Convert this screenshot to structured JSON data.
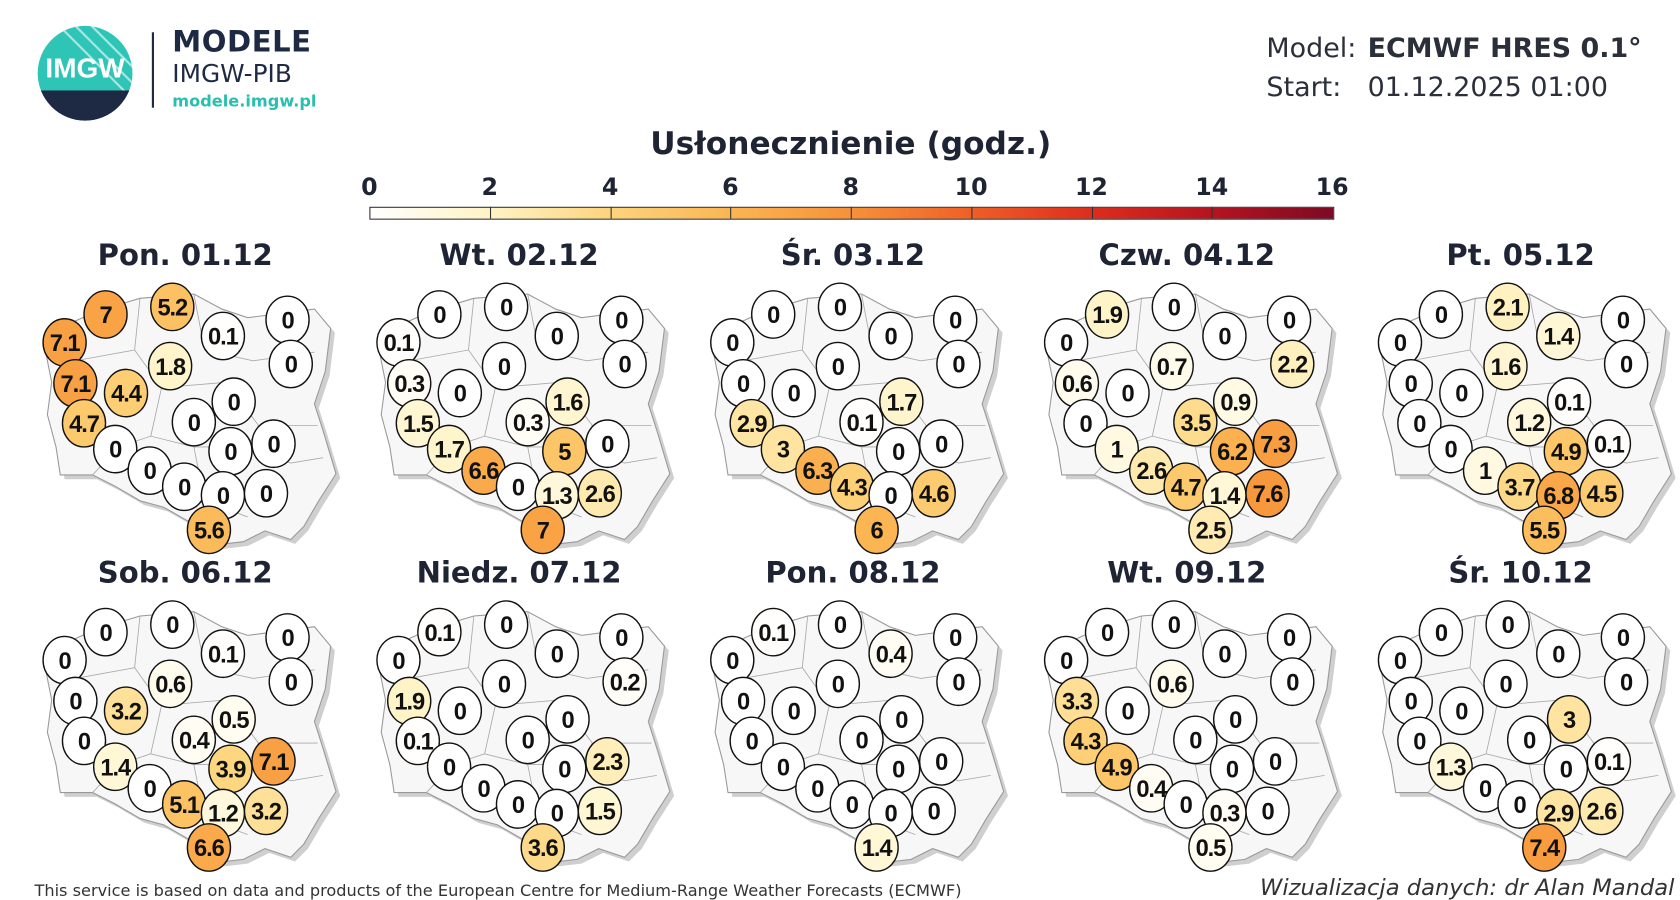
{
  "header": {
    "logo_text": "IMGW",
    "brand_title": "MODELE",
    "brand_subtitle": "IMGW-PIB",
    "brand_url": "modele.imgw.pl",
    "model_label": "Model:",
    "model_value": "ECMWF HRES 0.1°",
    "start_label": "Start:",
    "start_value": "01.12.2025 01:00"
  },
  "legend": {
    "title": "Usłonecznienie (godz.)",
    "ticks": [
      "0",
      "2",
      "4",
      "6",
      "8",
      "10",
      "12",
      "14",
      "16"
    ],
    "range": [
      0,
      16
    ],
    "colors": [
      "#ffffff",
      "#fff3c4",
      "#fdd47c",
      "#fbb552",
      "#f69138",
      "#ef5f26",
      "#dd2c1e",
      "#b41420",
      "#7d0a25"
    ]
  },
  "maps": [
    {
      "title": "Pon. 01.12",
      "values": [
        7.1,
        7,
        5.2,
        0.1,
        0,
        1.8,
        0,
        7.1,
        4.4,
        0,
        4.7,
        0,
        0,
        0,
        0,
        0,
        0,
        0,
        0,
        5.6
      ]
    },
    {
      "title": "Wt. 02.12",
      "values": [
        0.1,
        0,
        0,
        0,
        0,
        0,
        0,
        0.3,
        0,
        1.6,
        1.5,
        0.3,
        5,
        0,
        1.7,
        6.6,
        0,
        1.3,
        2.6,
        7
      ]
    },
    {
      "title": "Śr. 03.12",
      "values": [
        0,
        0,
        0,
        0,
        0,
        0,
        0,
        0,
        0,
        1.7,
        2.9,
        0.1,
        0,
        0,
        3,
        6.3,
        4.3,
        0,
        4.6,
        6
      ]
    },
    {
      "title": "Czw. 04.12",
      "values": [
        0,
        1.9,
        0,
        0,
        0,
        0.7,
        2.2,
        0.6,
        0,
        0.9,
        0,
        3.5,
        6.2,
        7.3,
        1,
        2.6,
        4.7,
        1.4,
        7.6,
        2.5
      ]
    },
    {
      "title": "Pt. 05.12",
      "values": [
        0,
        0,
        2.1,
        1.4,
        0,
        1.6,
        0,
        0,
        0,
        0.1,
        0,
        1.2,
        4.9,
        0.1,
        0,
        1,
        3.7,
        6.8,
        4.5,
        5.5
      ]
    },
    {
      "title": "Sob. 06.12",
      "values": [
        0,
        0,
        0,
        0.1,
        0,
        0.6,
        0,
        0,
        3.2,
        0.5,
        0,
        0.4,
        3.9,
        7.1,
        1.4,
        0,
        5.1,
        1.2,
        3.2,
        6.6
      ]
    },
    {
      "title": "Niedz. 07.12",
      "values": [
        0,
        0.1,
        0,
        0,
        0,
        0,
        0.2,
        1.9,
        0,
        0,
        0.1,
        0,
        0,
        2.3,
        0,
        0,
        0,
        0,
        1.5,
        3.6
      ]
    },
    {
      "title": "Pon. 08.12",
      "values": [
        0,
        0.1,
        0,
        0.4,
        0,
        0,
        0,
        0,
        0,
        0,
        0,
        0,
        0,
        0,
        0,
        0,
        0,
        0,
        0,
        1.4
      ]
    },
    {
      "title": "Wt. 09.12",
      "values": [
        0,
        0,
        0,
        0,
        0,
        0.6,
        0,
        3.3,
        0,
        0,
        4.3,
        0,
        0,
        0,
        4.9,
        0.4,
        0,
        0.3,
        0,
        0.5
      ]
    },
    {
      "title": "Śr. 10.12",
      "values": [
        0,
        0,
        0,
        0,
        0,
        0,
        0,
        0,
        0,
        3,
        0,
        0,
        0,
        0.1,
        1.3,
        0,
        0,
        2.9,
        2.6,
        7.4
      ]
    }
  ],
  "footer": {
    "attribution": "This service is based on data and products of the European Centre for Medium-Range Weather Forecasts (ECMWF)",
    "credit": "Wizualizacja danych: dr Alan Mandal"
  }
}
